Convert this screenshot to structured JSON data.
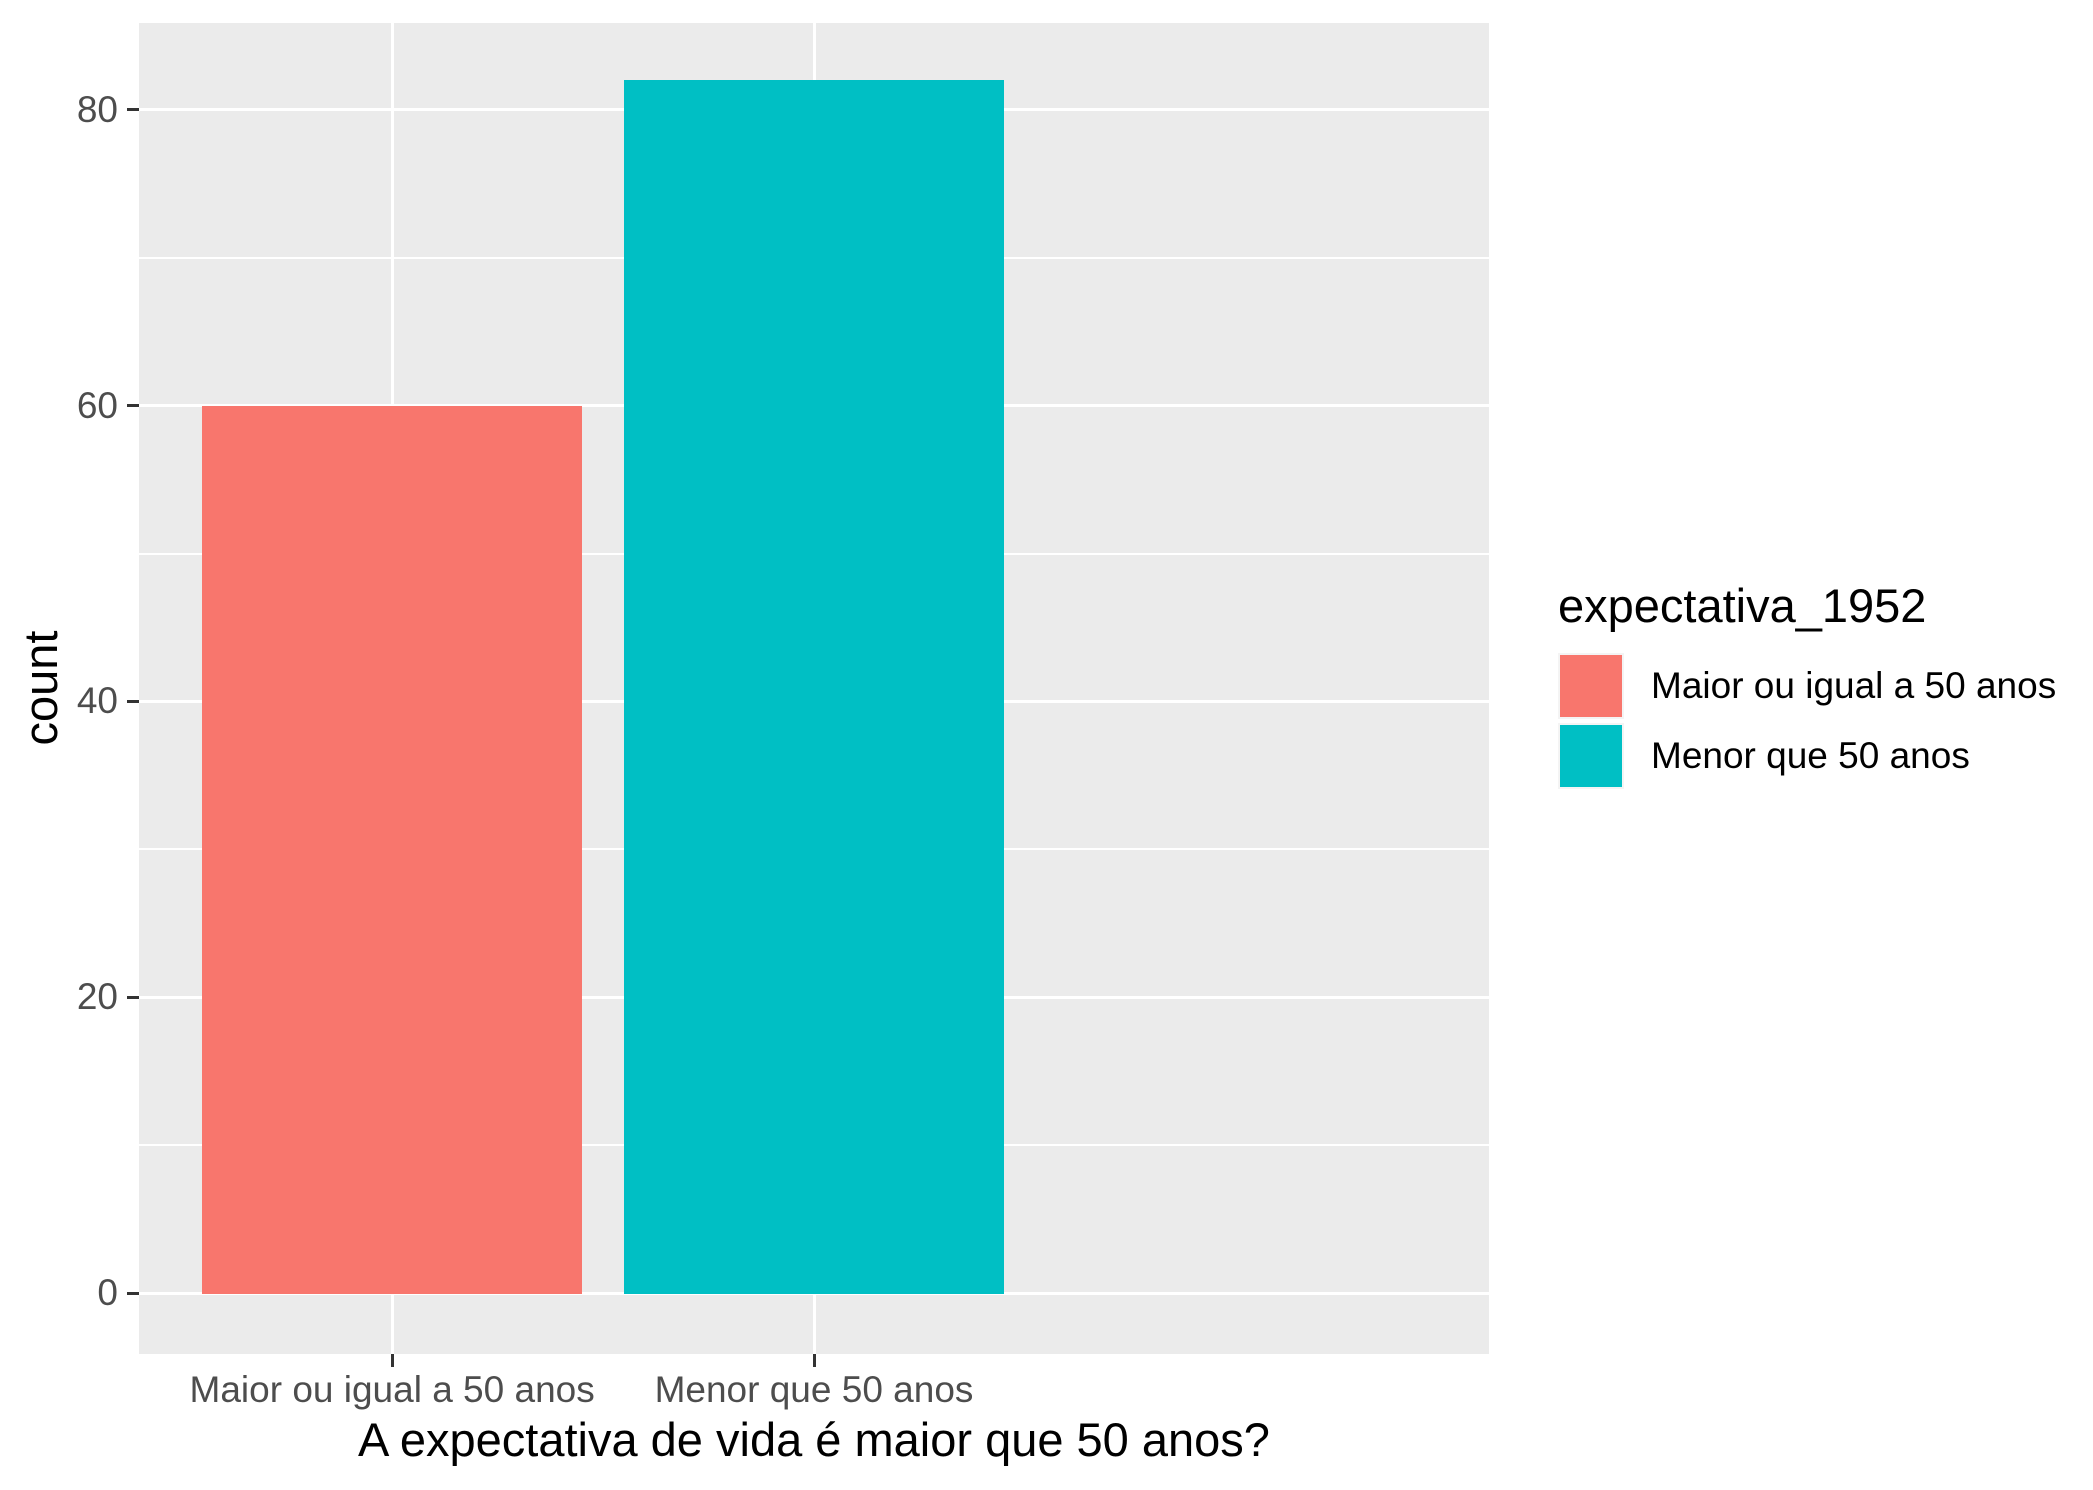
{
  "chart_data": {
    "type": "bar",
    "title": "",
    "xlabel": "A expectativa de vida é maior que 50 anos?",
    "ylabel": "count",
    "categories": [
      "Maior ou igual a 50 anos",
      "Menor que 50 anos"
    ],
    "values": [
      60,
      82
    ],
    "bar_colors": [
      "#F8766D",
      "#00BFC4"
    ],
    "yticks": [
      0,
      20,
      40,
      60,
      80
    ],
    "minor_gridlines": [
      10,
      30,
      50,
      70
    ],
    "ylim": [
      -4.1,
      85.9
    ],
    "grid": "white major and minor horizontal gridlines, white vertical gridlines at category centers, on gray panel",
    "legend_position": "right",
    "legend": {
      "title": "expectativa_1952",
      "entries": [
        {
          "label": "Maior ou igual a 50 anos",
          "color": "#F8766D"
        },
        {
          "label": "Menor que 50 anos",
          "color": "#00BFC4"
        }
      ]
    },
    "colors": {
      "figure_background": "#FFFFFF",
      "panel_background": "#EBEBEB",
      "gridline": "#FFFFFF",
      "tick_label": "#4D4D4D",
      "axis_title": "#000000",
      "tick_mark": "#333333"
    }
  }
}
